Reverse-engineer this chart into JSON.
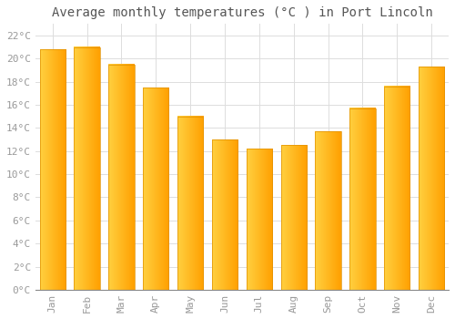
{
  "title": "Average monthly temperatures (°C ) in Port Lincoln",
  "months": [
    "Jan",
    "Feb",
    "Mar",
    "Apr",
    "May",
    "Jun",
    "Jul",
    "Aug",
    "Sep",
    "Oct",
    "Nov",
    "Dec"
  ],
  "values": [
    20.8,
    21.0,
    19.5,
    17.5,
    15.0,
    13.0,
    12.2,
    12.5,
    13.7,
    15.7,
    17.6,
    19.3
  ],
  "bar_color_left": "#FFD040",
  "bar_color_right": "#FFA000",
  "bar_edge_color": "#E09000",
  "background_color": "#FFFFFF",
  "grid_color": "#DDDDDD",
  "ytick_labels": [
    "0°C",
    "2°C",
    "4°C",
    "6°C",
    "8°C",
    "10°C",
    "12°C",
    "14°C",
    "16°C",
    "18°C",
    "20°C",
    "22°C"
  ],
  "ytick_values": [
    0,
    2,
    4,
    6,
    8,
    10,
    12,
    14,
    16,
    18,
    20,
    22
  ],
  "ylim": [
    0,
    23
  ],
  "title_fontsize": 10,
  "tick_fontsize": 8,
  "tick_color": "#999999",
  "title_color": "#555555",
  "bar_width": 0.75
}
